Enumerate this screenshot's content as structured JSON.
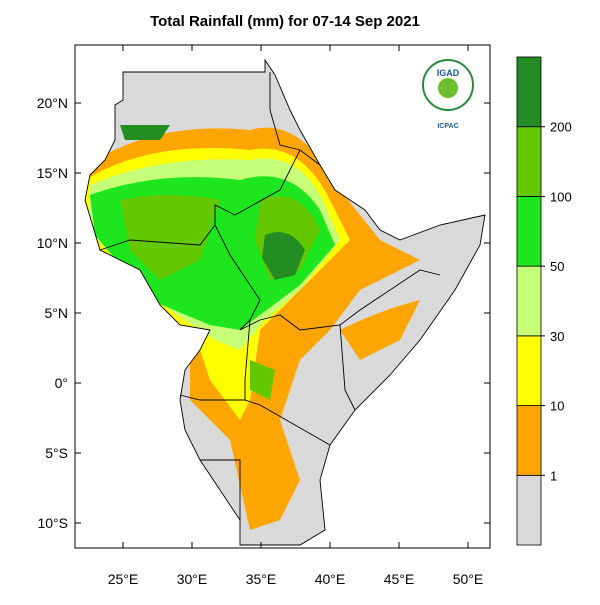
{
  "title": "Total Rainfall (mm) for 07-14 Sep 2021",
  "lat_ticks": [
    {
      "value": 20,
      "label": "20°N"
    },
    {
      "value": 15,
      "label": "15°N"
    },
    {
      "value": 10,
      "label": "10°N"
    },
    {
      "value": 5,
      "label": "5°N"
    },
    {
      "value": 0,
      "label": "0°"
    },
    {
      "value": -5,
      "label": "5°S"
    },
    {
      "value": -10,
      "label": "10°S"
    }
  ],
  "lon_ticks": [
    {
      "value": 25,
      "label": "25°E"
    },
    {
      "value": 30,
      "label": "30°E"
    },
    {
      "value": 35,
      "label": "35°E"
    },
    {
      "value": 40,
      "label": "40°E"
    },
    {
      "value": 45,
      "label": "45°E"
    },
    {
      "value": 50,
      "label": "50°E"
    }
  ],
  "colorbar": {
    "levels": [
      1,
      10,
      30,
      50,
      100,
      200
    ],
    "colors": [
      "#d9d9d9",
      "#ffa500",
      "#ffff00",
      "#c6ff78",
      "#1ee61e",
      "#64c800",
      "#238c23"
    ]
  },
  "logo": {
    "name": "IGAD",
    "org": "ICPAC"
  }
}
